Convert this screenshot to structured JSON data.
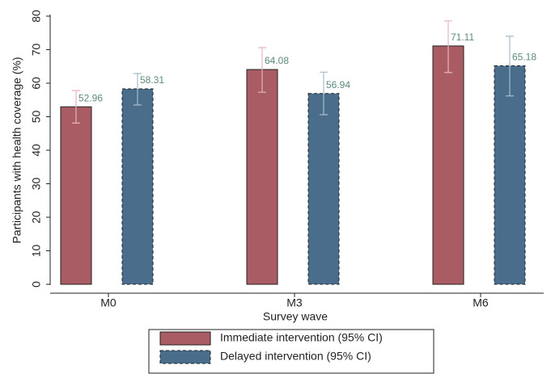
{
  "chart_data": {
    "type": "bar",
    "xlabel": "Survey wave",
    "ylabel": "Participants with health coverage (%)",
    "categories": [
      "M0",
      "M3",
      "M6"
    ],
    "series": [
      {
        "name": "Immediate intervention (95% CI)",
        "color": "#a95c64",
        "border": "solid",
        "error_color": "#e8b4bb",
        "values": [
          52.96,
          64.08,
          71.11
        ],
        "lower": [
          48.1,
          57.3,
          63.2
        ],
        "upper": [
          57.8,
          70.6,
          78.6
        ]
      },
      {
        "name": "Delayed intervention (95% CI)",
        "color": "#4a6d8c",
        "border": "dashed",
        "error_color": "#a9bccb",
        "values": [
          58.31,
          56.94,
          65.18
        ],
        "lower": [
          53.5,
          50.6,
          56.2
        ],
        "upper": [
          62.9,
          63.3,
          74.0
        ]
      }
    ],
    "value_label_color": "#5d8a79",
    "ylim": [
      0,
      80
    ],
    "yticks": [
      0,
      10,
      20,
      30,
      40,
      50,
      60,
      70,
      80
    ]
  }
}
